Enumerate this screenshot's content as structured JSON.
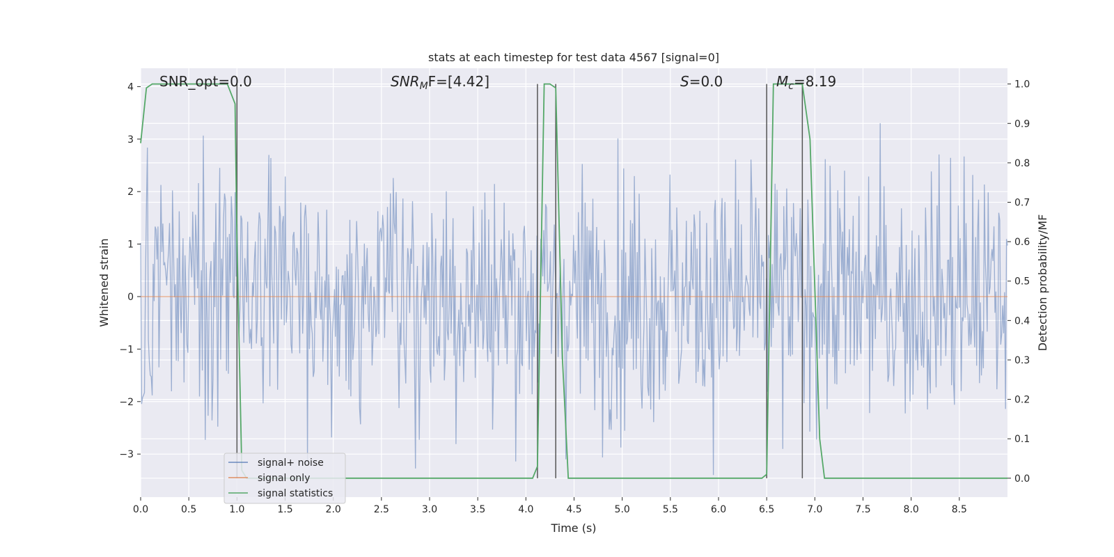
{
  "chart_data": {
    "type": "line",
    "title": "stats at each timestep for test data 4567 [signal=0]",
    "xlabel": "Time (s)",
    "ylabel": "Whitened strain",
    "ylabel_right": "Detection probability/MF",
    "xlim": [
      0,
      9.0
    ],
    "ylim": [
      -3.82,
      4.35
    ],
    "ylim_right": [
      -0.048,
      1.04
    ],
    "x_ticks": [
      0.0,
      0.5,
      1.0,
      1.5,
      2.0,
      2.5,
      3.0,
      3.5,
      4.0,
      4.5,
      5.0,
      5.5,
      6.0,
      6.5,
      7.0,
      7.5,
      8.0,
      8.5
    ],
    "x_tick_labels": [
      "0.0",
      "0.5",
      "1.0",
      "1.5",
      "2.0",
      "2.5",
      "3.0",
      "3.5",
      "4.0",
      "4.5",
      "5.0",
      "5.5",
      "6.0",
      "6.5",
      "7.0",
      "7.5",
      "8.0",
      "8.5"
    ],
    "y_ticks": [
      -3,
      -2,
      -1,
      0,
      1,
      2,
      3,
      4
    ],
    "y_tick_labels": [
      "−3",
      "−2",
      "−1",
      "0",
      "1",
      "2",
      "3",
      "4"
    ],
    "y_right_ticks": [
      0.0,
      0.1,
      0.2,
      0.3,
      0.4,
      0.5,
      0.6,
      0.7,
      0.8,
      0.9,
      1.0
    ],
    "y_right_tick_labels": [
      "0.0",
      "0.1",
      "0.2",
      "0.3",
      "0.4",
      "0.5",
      "0.6",
      "0.7",
      "0.8",
      "0.9",
      "1.0"
    ],
    "grid": true,
    "legend_position": "bottom-left",
    "annotations": {
      "snr_opt": "SNR_opt=0.0",
      "snr_mf_sym": "SNR",
      "snr_mf_sub": "M",
      "snr_mf_rest": "F=[4.42]",
      "s_sym": "S",
      "s_rest": "=0.0",
      "mc_sym": "M",
      "mc_sub": "c",
      "mc_rest": "=8.19"
    },
    "vertical_lines_x": [
      1.0,
      4.12,
      4.31,
      6.5,
      6.87
    ],
    "series": [
      {
        "name": "signal+ noise",
        "color": "#4c72b0",
        "opacity": 0.5,
        "axis": "left",
        "sample_count": 900,
        "typical_amplitude": 1.2,
        "peak_range": [
          -3.4,
          3.6
        ]
      },
      {
        "name": "signal only",
        "color": "#dd8452",
        "opacity": 0.6,
        "axis": "left",
        "x": [
          0.0,
          9.0
        ],
        "y": [
          0.0,
          0.0
        ]
      },
      {
        "name": "signal statistics",
        "color": "#55a868",
        "axis": "right",
        "x": [
          0.0,
          0.06,
          0.12,
          0.25,
          0.5,
          0.75,
          0.9,
          0.98,
          1.0,
          1.05,
          1.1,
          1.2,
          1.5,
          2.0,
          2.5,
          3.0,
          3.5,
          4.0,
          4.07,
          4.12,
          4.19,
          4.25,
          4.31,
          4.38,
          4.44,
          4.5,
          5.0,
          5.5,
          6.0,
          6.45,
          6.5,
          6.57,
          6.65,
          6.87,
          6.95,
          7.05,
          7.1,
          7.5,
          8.0,
          8.5,
          9.0
        ],
        "y": [
          0.85,
          0.99,
          1.0,
          1.0,
          1.0,
          1.0,
          1.0,
          0.95,
          0.6,
          0.02,
          0.0,
          0.0,
          0.0,
          0.0,
          0.0,
          0.0,
          0.0,
          0.0,
          0.0,
          0.03,
          1.0,
          1.0,
          0.99,
          0.3,
          0.0,
          0.0,
          0.0,
          0.0,
          0.0,
          0.0,
          0.01,
          1.0,
          1.0,
          1.0,
          0.86,
          0.1,
          0.0,
          0.0,
          0.0,
          0.0,
          0.0
        ]
      }
    ]
  }
}
